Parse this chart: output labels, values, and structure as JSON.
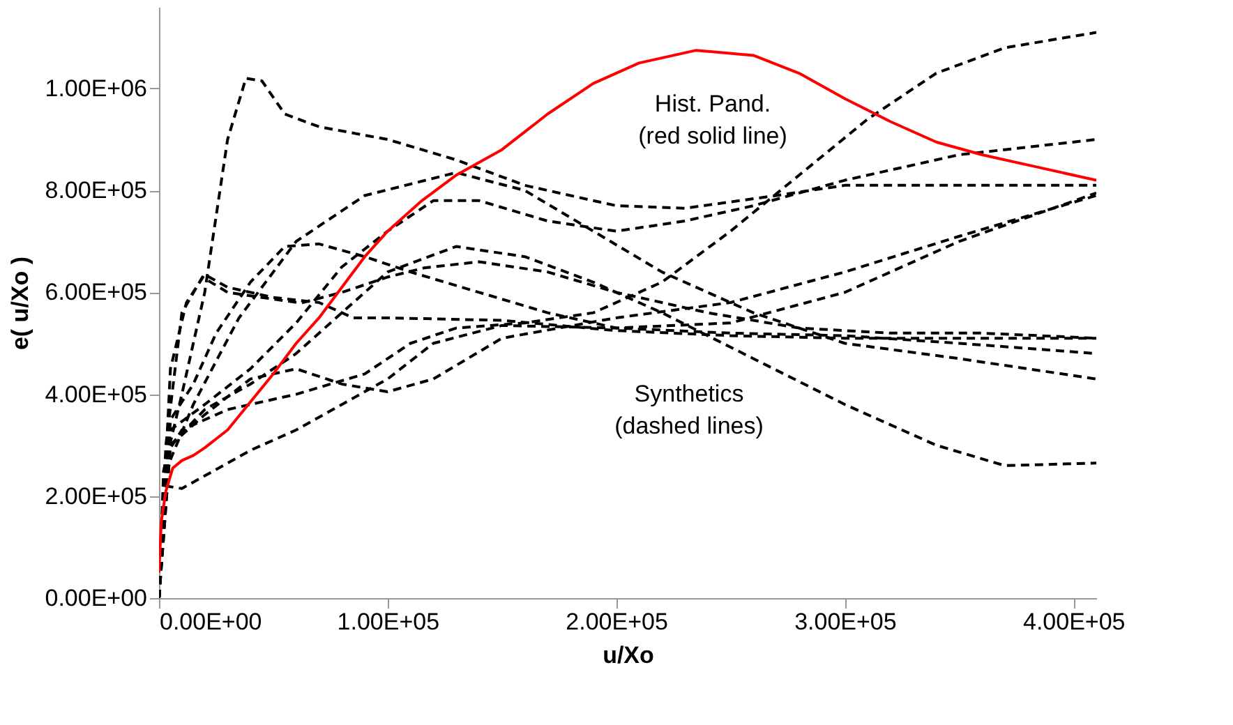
{
  "chart_data": {
    "type": "line",
    "xlabel": "u/Xo",
    "ylabel": "e( u/Xo )",
    "xlim": [
      0,
      410000
    ],
    "ylim": [
      0,
      1160000
    ],
    "xticks": [
      {
        "value": 0,
        "label": "0.00E+00"
      },
      {
        "value": 100000,
        "label": "1.00E+05"
      },
      {
        "value": 200000,
        "label": "2.00E+05"
      },
      {
        "value": 300000,
        "label": "3.00E+05"
      },
      {
        "value": 400000,
        "label": "4.00E+05"
      }
    ],
    "yticks": [
      {
        "value": 0,
        "label": "0.00E+00"
      },
      {
        "value": 200000,
        "label": "2.00E+05"
      },
      {
        "value": 400000,
        "label": "4.00E+05"
      },
      {
        "value": 600000,
        "label": "6.00E+05"
      },
      {
        "value": 800000,
        "label": "8.00E+05"
      },
      {
        "value": 1000000,
        "label": "1.00E+06"
      }
    ],
    "grid": false,
    "marker": "none",
    "annotations": [
      "Hist. Pand.\n(red solid line)",
      "Synthetics\n(dashed lines)"
    ],
    "series": [
      {
        "color": "#000000",
        "line_style": "dashed",
        "x": [
          0,
          2000,
          10000,
          20000,
          30000,
          38000,
          45000,
          55000,
          70000,
          100000,
          130000,
          160000,
          200000,
          230000,
          270000,
          300000,
          350000,
          410000
        ],
        "values": [
          0,
          250000,
          400000,
          600000,
          900000,
          1020000,
          1015000,
          950000,
          925000,
          900000,
          860000,
          810000,
          770000,
          765000,
          790000,
          810000,
          810000,
          810000
        ]
      },
      {
        "color": "#000000",
        "line_style": "dashed",
        "x": [
          0,
          3000,
          10000,
          30000,
          60000,
          90000,
          110000,
          130000,
          160000,
          190000,
          220000,
          250000,
          280000,
          310000,
          340000,
          370000,
          410000
        ],
        "values": [
          0,
          280000,
          330000,
          370000,
          400000,
          440000,
          500000,
          530000,
          540000,
          560000,
          620000,
          720000,
          830000,
          940000,
          1030000,
          1080000,
          1110000
        ]
      },
      {
        "color": "#000000",
        "line_style": "dashed",
        "x": [
          0,
          5000,
          20000,
          40000,
          60000,
          80000,
          100000,
          120000,
          140000,
          170000,
          200000,
          230000,
          260000,
          300000,
          350000,
          410000
        ],
        "values": [
          0,
          330000,
          380000,
          450000,
          540000,
          650000,
          720000,
          780000,
          780000,
          740000,
          720000,
          740000,
          770000,
          820000,
          870000,
          900000
        ]
      },
      {
        "color": "#000000",
        "line_style": "dashed",
        "x": [
          0,
          3000,
          15000,
          35000,
          60000,
          90000,
          130000,
          160000,
          190000,
          220000,
          260000,
          300000,
          350000,
          410000
        ],
        "values": [
          0,
          250000,
          380000,
          550000,
          700000,
          790000,
          835000,
          800000,
          720000,
          640000,
          560000,
          500000,
          470000,
          430000
        ]
      },
      {
        "color": "#000000",
        "line_style": "dashed",
        "x": [
          0,
          5000,
          20000,
          40000,
          60000,
          80000,
          100000,
          130000,
          160000,
          190000,
          220000,
          260000,
          300000,
          340000,
          370000,
          410000
        ],
        "values": [
          0,
          300000,
          370000,
          420000,
          480000,
          560000,
          640000,
          690000,
          670000,
          620000,
          560000,
          470000,
          380000,
          300000,
          260000,
          265000
        ]
      },
      {
        "color": "#000000",
        "line_style": "dashed",
        "x": [
          0,
          5000,
          12000,
          20000,
          30000,
          50000,
          70000,
          85000,
          100000,
          150000,
          200000,
          250000,
          300000,
          350000,
          410000
        ],
        "values": [
          0,
          450000,
          580000,
          635000,
          610000,
          590000,
          580000,
          550000,
          550000,
          545000,
          525000,
          515000,
          510000,
          510000,
          510000
        ]
      },
      {
        "color": "#000000",
        "line_style": "dashed",
        "x": [
          0,
          5000,
          15000,
          25000,
          40000,
          55000,
          70000,
          90000,
          110000,
          140000,
          170000,
          200000,
          250000,
          300000,
          350000,
          410000
        ],
        "values": [
          0,
          350000,
          420000,
          520000,
          620000,
          690000,
          695000,
          670000,
          640000,
          600000,
          560000,
          530000,
          520000,
          515000,
          500000,
          480000
        ]
      },
      {
        "color": "#000000",
        "line_style": "dashed",
        "x": [
          0,
          3000,
          10000,
          19000,
          30000,
          45000,
          62000,
          80000,
          100000,
          116000,
          140000,
          170000,
          200000,
          240000,
          280000,
          320000,
          360000,
          410000
        ],
        "values": [
          0,
          300000,
          560000,
          630000,
          600000,
          590000,
          579000,
          600000,
          630000,
          648000,
          660000,
          640000,
          600000,
          560000,
          530000,
          520000,
          520000,
          510000
        ]
      },
      {
        "color": "#000000",
        "line_style": "dashed",
        "x": [
          0,
          3000,
          10000,
          20000,
          40000,
          60000,
          80000,
          100000,
          120000,
          150000,
          200000,
          250000,
          300000,
          350000,
          410000
        ],
        "values": [
          0,
          220000,
          215000,
          240000,
          290000,
          330000,
          380000,
          430000,
          500000,
          535000,
          530000,
          540000,
          600000,
          700000,
          795000
        ]
      },
      {
        "color": "#000000",
        "line_style": "dashed",
        "x": [
          0,
          5000,
          20000,
          40000,
          60000,
          80000,
          100000,
          120000,
          150000,
          200000,
          250000,
          300000,
          350000,
          410000
        ],
        "values": [
          0,
          300000,
          360000,
          430000,
          450000,
          420000,
          405000,
          430000,
          510000,
          550000,
          580000,
          640000,
          710000,
          790000
        ]
      },
      {
        "color": "#ff0000",
        "line_style": "solid",
        "x": [
          0,
          1000,
          3000,
          6000,
          10000,
          15000,
          20000,
          30000,
          40000,
          50000,
          60000,
          70000,
          80000,
          90000,
          100000,
          115000,
          130000,
          150000,
          170000,
          190000,
          210000,
          235000,
          260000,
          280000,
          300000,
          320000,
          340000,
          360000,
          380000,
          410000
        ],
        "values": [
          50000,
          150000,
          210000,
          255000,
          270000,
          280000,
          295000,
          330000,
          385000,
          440000,
          500000,
          550000,
          610000,
          670000,
          720000,
          780000,
          830000,
          880000,
          950000,
          1010000,
          1050000,
          1075000,
          1065000,
          1030000,
          980000,
          935000,
          895000,
          870000,
          850000,
          820000
        ]
      }
    ]
  }
}
